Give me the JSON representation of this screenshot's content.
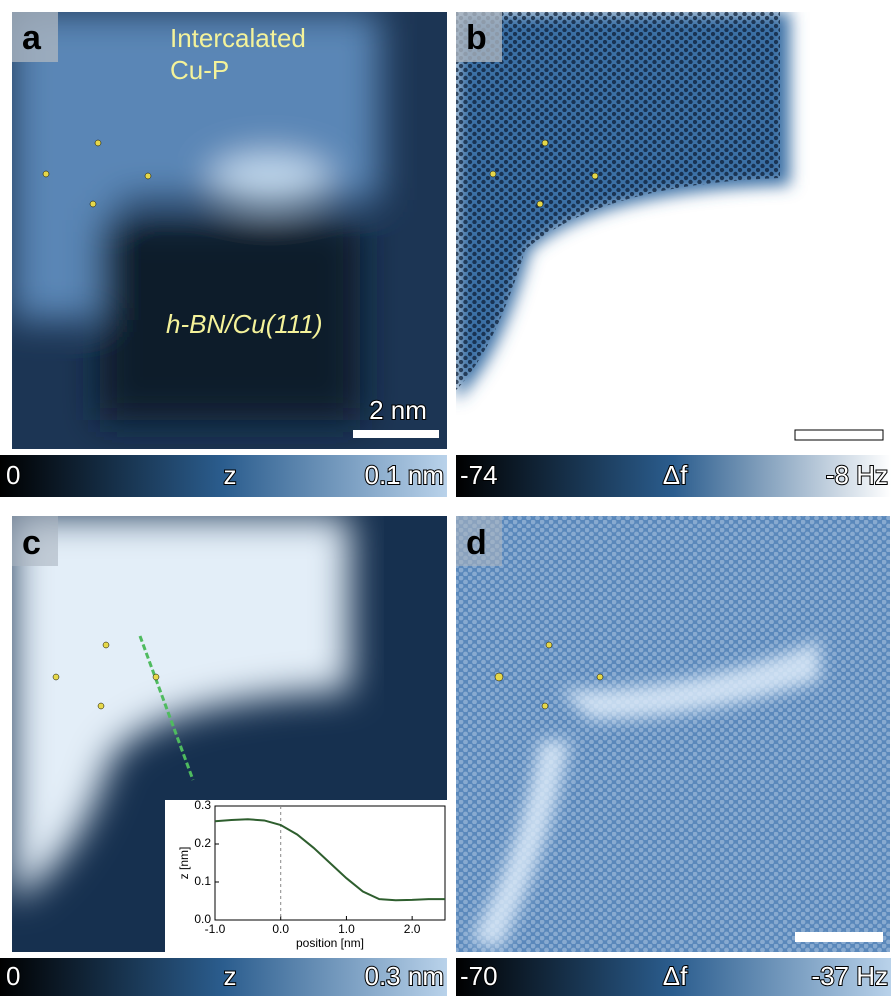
{
  "panels": [
    {
      "label": "a",
      "annotations": [
        "Intercalated",
        "Cu-P",
        "h-BN/Cu(111)"
      ],
      "scale_bar": "2 nm",
      "colorbar": {
        "min": "0",
        "quantity": "z",
        "max": "0.1 nm"
      }
    },
    {
      "label": "b",
      "colorbar": {
        "min": "-74",
        "quantity": "Δf",
        "max": "-8 Hz"
      }
    },
    {
      "label": "c",
      "colorbar": {
        "min": "0",
        "quantity": "z",
        "max": "0.3 nm"
      },
      "inset": {
        "type": "line",
        "x_label": "position [nm]",
        "y_label": "z [nm]",
        "x": [
          -1.0,
          -0.75,
          -0.5,
          -0.25,
          0.0,
          0.25,
          0.5,
          0.75,
          1.0,
          1.25,
          1.5,
          1.75,
          2.0,
          2.25,
          2.5
        ],
        "series": [
          {
            "color": "#2e5e2e",
            "values": [
              0.26,
              0.263,
              0.265,
              0.262,
              0.25,
              0.225,
              0.19,
              0.15,
              0.11,
              0.075,
              0.055,
              0.052,
              0.053,
              0.055,
              0.055
            ]
          }
        ],
        "xlim": [
          -1.0,
          2.5
        ],
        "ylim": [
          0.0,
          0.3
        ],
        "xticks": [
          {
            "value": -1,
            "label": "-1.0"
          },
          {
            "value": 0,
            "label": "0.0"
          },
          {
            "value": 1,
            "label": "1.0"
          },
          {
            "value": 2,
            "label": "2.0"
          }
        ],
        "yticks": [
          {
            "value": 0,
            "label": "0.0"
          },
          0.1,
          0.2,
          0.3
        ],
        "vline": 0
      }
    },
    {
      "label": "d",
      "colorbar": {
        "min": "-70",
        "quantity": "Δf",
        "max": "-37 Hz"
      }
    }
  ]
}
